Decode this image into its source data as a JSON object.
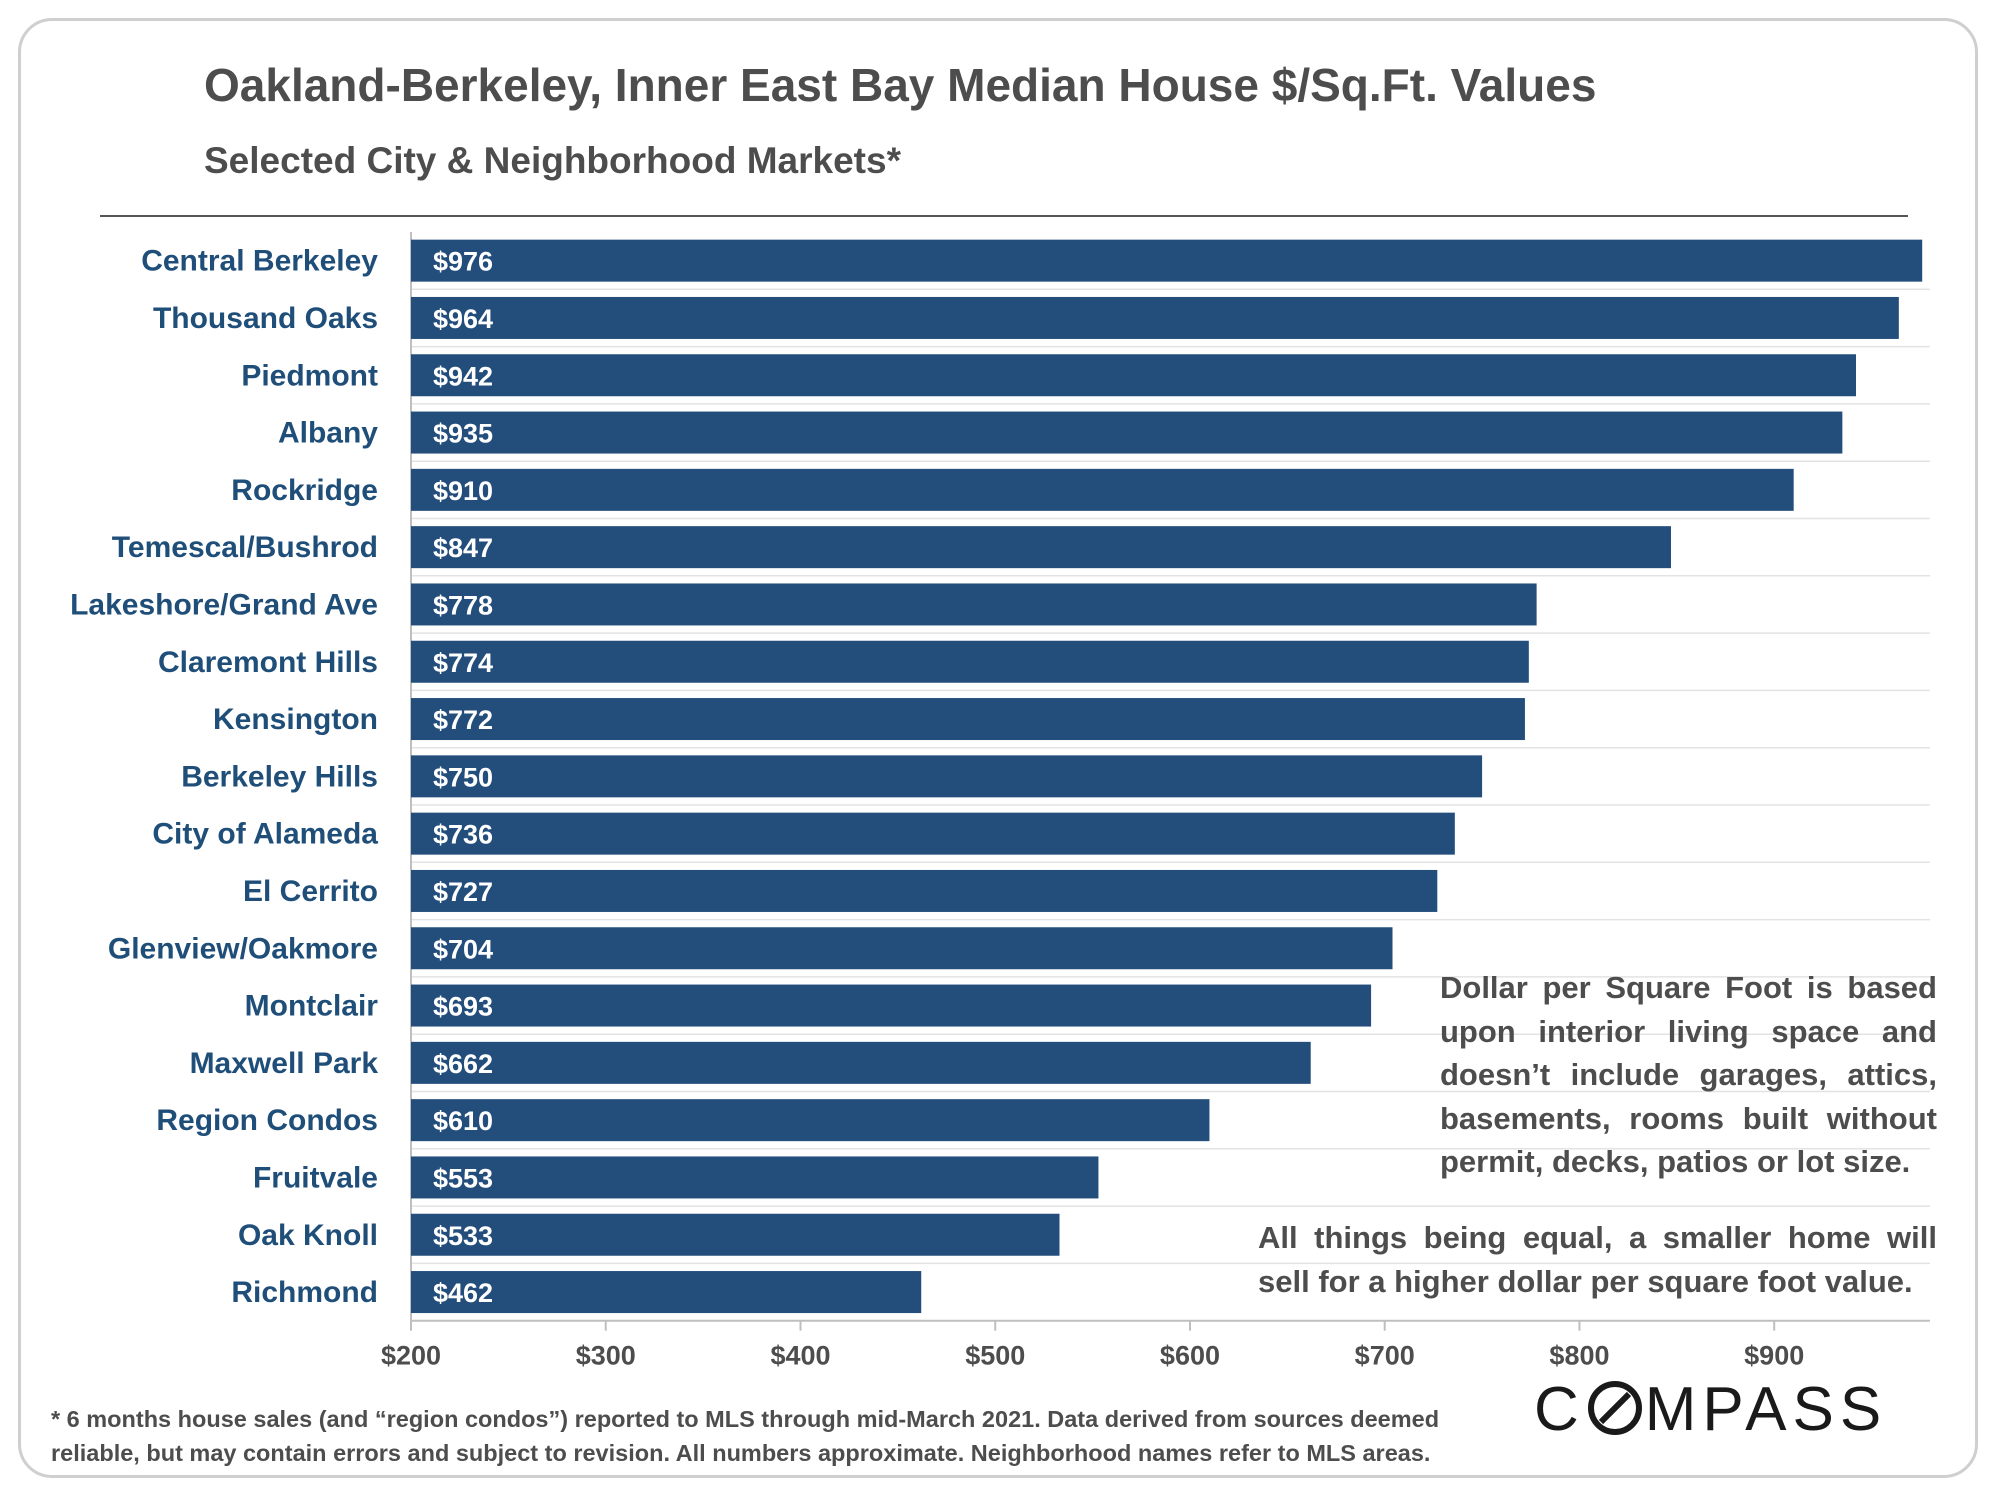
{
  "chart_data": {
    "type": "bar",
    "orientation": "horizontal",
    "title": "Oakland-Berkeley, Inner East Bay Median House $/Sq.Ft. Values",
    "subtitle": "Selected City & Neighborhood Markets*",
    "categories": [
      "Central Berkeley",
      "Thousand Oaks",
      "Piedmont",
      "Albany",
      "Rockridge",
      "Temescal/Bushrod",
      "Lakeshore/Grand Ave",
      "Claremont Hills",
      "Kensington",
      "Berkeley Hills",
      "City of Alameda",
      "El Cerrito",
      "Glenview/Oakmore",
      "Montclair",
      "Maxwell Park",
      "Region Condos",
      "Fruitvale",
      "Oak Knoll",
      "Richmond"
    ],
    "values": [
      976,
      964,
      942,
      935,
      910,
      847,
      778,
      774,
      772,
      750,
      736,
      727,
      704,
      693,
      662,
      610,
      553,
      533,
      462
    ],
    "data_labels": [
      "$976",
      "$964",
      "$942",
      "$935",
      "$910",
      "$847",
      "$778",
      "$774",
      "$772",
      "$750",
      "$736",
      "$727",
      "$704",
      "$693",
      "$662",
      "$610",
      "$553",
      "$533",
      "$462"
    ],
    "xlim": [
      200,
      980
    ],
    "x_ticks": [
      200,
      300,
      400,
      500,
      600,
      700,
      800,
      900
    ],
    "x_tick_labels": [
      "$200",
      "$300",
      "$400",
      "$500",
      "$600",
      "$700",
      "$800",
      "$900"
    ],
    "xlabel": "",
    "ylabel": "",
    "grid": true,
    "bar_color": "#234e7c",
    "label_color": "#1f4e79"
  },
  "notes": {
    "interior_lines": [
      "Dollar per Square Foot is based",
      "upon interior living space and",
      "doesn’t include garages, attics,",
      "basements, rooms built without",
      "permit, decks, patios or lot size."
    ],
    "equal_lines": [
      "All things being equal, a smaller home will",
      "sell for a higher dollar per square foot value."
    ]
  },
  "footnote": "* 6 months house sales (and “region condos”) reported to MLS through mid-March 2021. Data derived from sources deemed reliable, but may contain errors and subject to revision. All numbers approximate. Neighborhood names refer to MLS areas.",
  "logo": {
    "prefix": "C",
    "suffix": "MPASS"
  }
}
